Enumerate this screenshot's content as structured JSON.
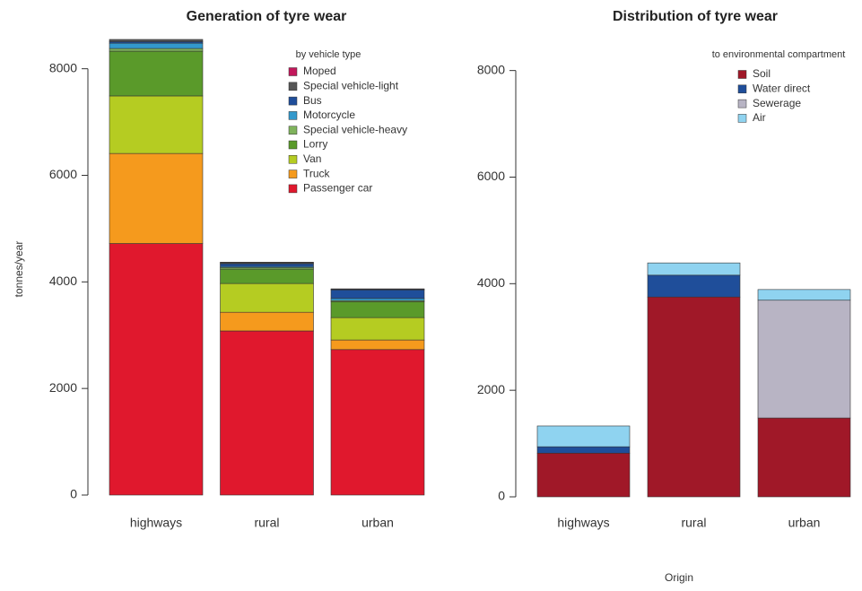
{
  "chart_data": [
    {
      "type": "stacked-bar",
      "title": "Generation of tyre wear",
      "y_label": "tonnes/year",
      "legend_title": "by vehicle type",
      "legend": "top-right",
      "categories": [
        "highways",
        "rural",
        "urban"
      ],
      "ylim": [
        0,
        8600
      ],
      "yticks": [
        0,
        2000,
        4000,
        6000,
        8000
      ],
      "series": [
        {
          "name": "Passenger car",
          "color": "#e0182d",
          "values": [
            4720,
            3080,
            2730
          ]
        },
        {
          "name": "Truck",
          "color": "#f59a1d",
          "values": [
            1690,
            350,
            180
          ]
        },
        {
          "name": "Van",
          "color": "#b5cc22",
          "values": [
            1080,
            540,
            420
          ]
        },
        {
          "name": "Lorry",
          "color": "#5a9a2a",
          "values": [
            840,
            270,
            300
          ]
        },
        {
          "name": "Special vehicle-heavy",
          "color": "#7fb35c",
          "values": [
            50,
            30,
            20
          ]
        },
        {
          "name": "Motorcycle",
          "color": "#3399cc",
          "values": [
            100,
            20,
            40
          ]
        },
        {
          "name": "Bus",
          "color": "#1f4e9a",
          "values": [
            30,
            50,
            160
          ]
        },
        {
          "name": "Special vehicle-light",
          "color": "#555555",
          "values": [
            40,
            20,
            10
          ]
        },
        {
          "name": "Moped",
          "color": "#c2185b",
          "values": [
            0,
            10,
            10
          ]
        }
      ]
    },
    {
      "type": "stacked-bar",
      "title": "Distribution of tyre wear",
      "x_label": "Origin",
      "legend_title": "to environmental compartment",
      "legend": "top-right",
      "categories": [
        "highways",
        "rural",
        "urban"
      ],
      "ylim": [
        0,
        8600
      ],
      "yticks": [
        0,
        2000,
        4000,
        6000,
        8000
      ],
      "series": [
        {
          "name": "Soil",
          "color": "#a01828",
          "values": [
            820,
            3750,
            1480
          ]
        },
        {
          "name": "Water direct",
          "color": "#1f4e9a",
          "values": [
            120,
            410,
            0
          ]
        },
        {
          "name": "Sewerage",
          "color": "#b8b4c4",
          "values": [
            0,
            0,
            2210
          ]
        },
        {
          "name": "Air",
          "color": "#8fd3f0",
          "values": [
            390,
            230,
            200
          ]
        }
      ]
    }
  ]
}
